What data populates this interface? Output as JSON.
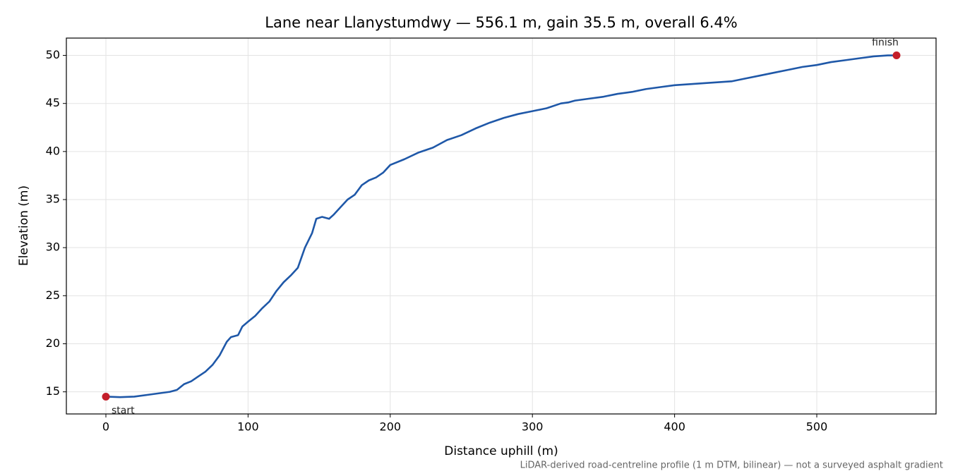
{
  "chart_data": {
    "type": "line",
    "title": "Lane near Llanystumdwy — 556.1 m, gain 35.5 m, overall 6.4%",
    "x_label": "Distance uphill (m)",
    "y_label": "Elevation (m)",
    "note": "LiDAR-derived road-centreline profile (1 m DTM, bilinear) — not a surveyed asphalt gradient",
    "x": [
      0,
      10,
      20,
      30,
      40,
      45,
      50,
      55,
      60,
      65,
      70,
      75,
      80,
      85,
      88,
      93,
      96,
      100,
      105,
      110,
      115,
      120,
      125,
      130,
      135,
      140,
      145,
      148,
      152,
      157,
      160,
      165,
      170,
      175,
      180,
      185,
      190,
      195,
      200,
      210,
      220,
      230,
      240,
      250,
      260,
      270,
      280,
      290,
      300,
      310,
      320,
      325,
      330,
      340,
      350,
      360,
      370,
      380,
      390,
      400,
      410,
      420,
      430,
      440,
      450,
      460,
      470,
      480,
      490,
      500,
      510,
      520,
      530,
      540,
      550,
      556.1
    ],
    "series": [
      {
        "color": "#1f58a8",
        "values": [
          14.5,
          14.45,
          14.5,
          14.7,
          14.9,
          15.0,
          15.2,
          15.8,
          16.1,
          16.6,
          17.1,
          17.8,
          18.8,
          20.2,
          20.7,
          20.9,
          21.8,
          22.3,
          22.9,
          23.7,
          24.4,
          25.5,
          26.4,
          27.1,
          27.9,
          30.0,
          31.5,
          33.0,
          33.2,
          33.0,
          33.4,
          34.2,
          35.0,
          35.5,
          36.5,
          37.0,
          37.3,
          37.8,
          38.6,
          39.2,
          39.9,
          40.4,
          41.2,
          41.7,
          42.4,
          43.0,
          43.5,
          43.9,
          44.2,
          44.5,
          45.0,
          45.1,
          45.3,
          45.5,
          45.7,
          46.0,
          46.2,
          46.5,
          46.7,
          46.9,
          47.0,
          47.1,
          47.2,
          47.3,
          47.6,
          47.9,
          48.2,
          48.5,
          48.8,
          49.0,
          49.3,
          49.5,
          49.7,
          49.9,
          50.0,
          50.0
        ]
      }
    ],
    "annotations": [
      {
        "text": "start",
        "x": 0,
        "y": 14.5
      },
      {
        "text": "finish",
        "x": 556.1,
        "y": 50.0
      }
    ],
    "marker_color": "#c41e2a",
    "xlim": [
      -27.8,
      583.9
    ],
    "ylim": [
      12.7,
      51.8
    ],
    "xticks": [
      0,
      100,
      200,
      300,
      400,
      500
    ],
    "yticks": [
      15,
      20,
      25,
      30,
      35,
      40,
      45,
      50
    ],
    "grid": true
  }
}
